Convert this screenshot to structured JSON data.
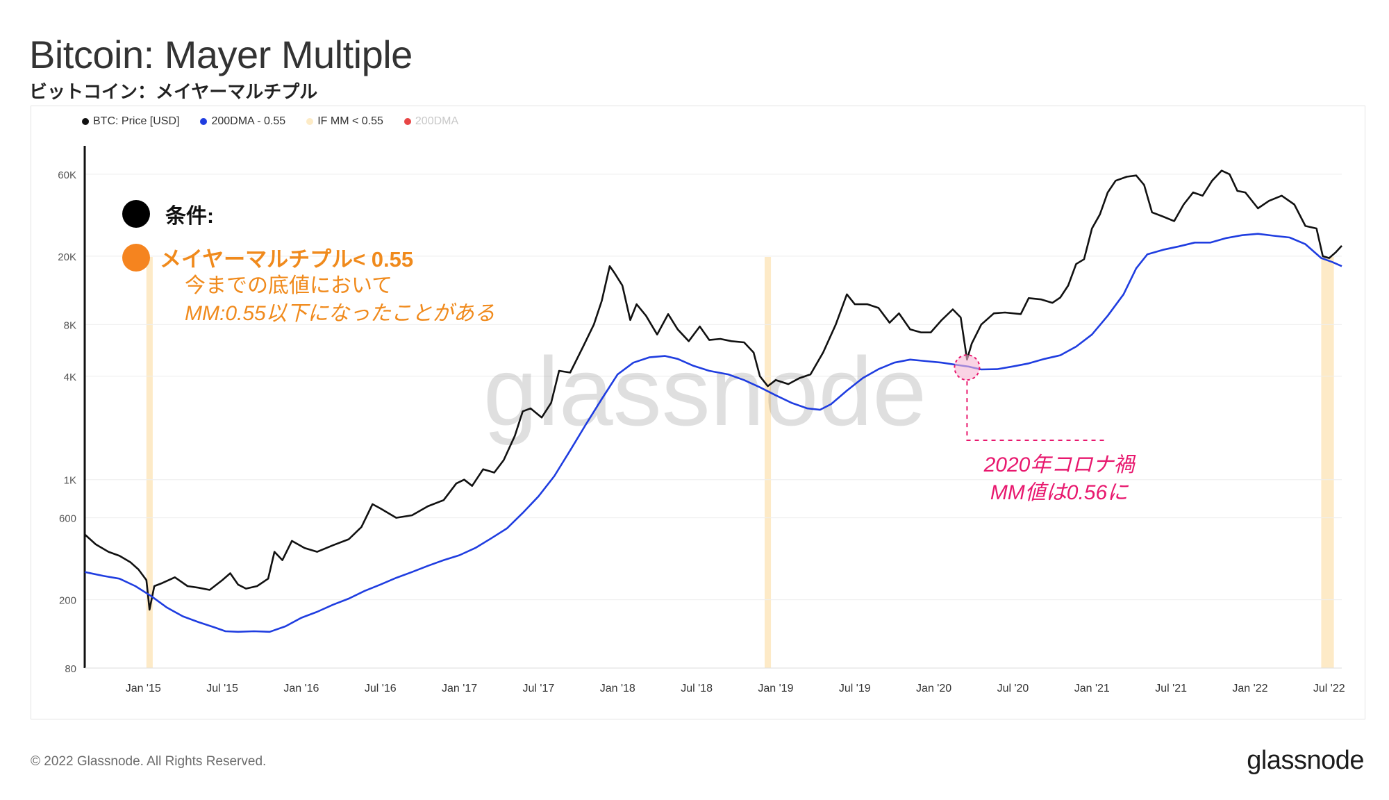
{
  "header": {
    "title": "Bitcoin: Mayer Multiple",
    "subtitle": "ビットコイン：メイヤーマルチプル"
  },
  "legend": [
    {
      "label": "BTC: Price [USD]",
      "color": "#111111"
    },
    {
      "label": "200DMA - 0.55",
      "color": "#1f3de0"
    },
    {
      "label": "IF MM < 0.55",
      "color": "#fdebc6"
    },
    {
      "label": "200DMA",
      "color": "#e84545"
    }
  ],
  "annotations": {
    "condition_label": "条件:",
    "mm_label": "メイヤーマルチプル< 0.55",
    "desc_line1": "今までの底値において",
    "desc_line2": "MM:0.55以下になったことがある",
    "covid_line1": "2020年コロナ禍",
    "covid_line2": "MM値は0.56に"
  },
  "watermark": "glassnode",
  "footer": {
    "copyright": "© 2022 Glassnode. All Rights Reserved.",
    "brand": "glassnode"
  },
  "chart_data": {
    "type": "line",
    "y_scale": "log",
    "ylim": [
      80,
      80000
    ],
    "ytick_labels": [
      "60K",
      "20K",
      "8K",
      "4K",
      "1K",
      "600",
      "200",
      "80"
    ],
    "yticks": [
      60000,
      20000,
      8000,
      4000,
      1000,
      600,
      200,
      80
    ],
    "xtick_labels": [
      "Jan '15",
      "Jul '15",
      "Jan '16",
      "Jul '16",
      "Jan '17",
      "Jul '17",
      "Jan '18",
      "Jul '18",
      "Jan '19",
      "Jul '19",
      "Jan '20",
      "Jul '20",
      "Jan '21",
      "Jul '21",
      "Jan '22",
      "Jul '22"
    ],
    "xticks": [
      2015.0,
      2015.5,
      2016.0,
      2016.5,
      2017.0,
      2017.5,
      2018.0,
      2018.5,
      2019.0,
      2019.5,
      2020.0,
      2020.5,
      2021.0,
      2021.5,
      2022.0,
      2022.5
    ],
    "xlim": [
      2014.63,
      2022.58
    ],
    "grid": true,
    "series": [
      {
        "name": "BTC: Price [USD]",
        "color": "#111111",
        "points": [
          [
            2014.63,
            480
          ],
          [
            2014.7,
            420
          ],
          [
            2014.78,
            380
          ],
          [
            2014.85,
            360
          ],
          [
            2014.92,
            330
          ],
          [
            2014.97,
            300
          ],
          [
            2015.02,
            260
          ],
          [
            2015.04,
            175
          ],
          [
            2015.07,
            240
          ],
          [
            2015.12,
            250
          ],
          [
            2015.2,
            270
          ],
          [
            2015.28,
            240
          ],
          [
            2015.35,
            235
          ],
          [
            2015.42,
            228
          ],
          [
            2015.5,
            260
          ],
          [
            2015.55,
            285
          ],
          [
            2015.6,
            245
          ],
          [
            2015.65,
            232
          ],
          [
            2015.72,
            240
          ],
          [
            2015.79,
            265
          ],
          [
            2015.83,
            380
          ],
          [
            2015.88,
            340
          ],
          [
            2015.94,
            440
          ],
          [
            2016.02,
            400
          ],
          [
            2016.1,
            380
          ],
          [
            2016.2,
            415
          ],
          [
            2016.3,
            450
          ],
          [
            2016.38,
            530
          ],
          [
            2016.45,
            720
          ],
          [
            2016.5,
            680
          ],
          [
            2016.6,
            600
          ],
          [
            2016.7,
            620
          ],
          [
            2016.8,
            700
          ],
          [
            2016.9,
            760
          ],
          [
            2016.98,
            950
          ],
          [
            2017.03,
            1000
          ],
          [
            2017.08,
            920
          ],
          [
            2017.15,
            1150
          ],
          [
            2017.22,
            1100
          ],
          [
            2017.28,
            1300
          ],
          [
            2017.35,
            1800
          ],
          [
            2017.4,
            2500
          ],
          [
            2017.45,
            2600
          ],
          [
            2017.52,
            2300
          ],
          [
            2017.58,
            2800
          ],
          [
            2017.63,
            4300
          ],
          [
            2017.7,
            4200
          ],
          [
            2017.78,
            5900
          ],
          [
            2017.85,
            8000
          ],
          [
            2017.9,
            11000
          ],
          [
            2017.95,
            17500
          ],
          [
            2017.98,
            16000
          ],
          [
            2018.03,
            13500
          ],
          [
            2018.08,
            8500
          ],
          [
            2018.12,
            10500
          ],
          [
            2018.18,
            9000
          ],
          [
            2018.25,
            7000
          ],
          [
            2018.32,
            9200
          ],
          [
            2018.38,
            7500
          ],
          [
            2018.45,
            6400
          ],
          [
            2018.52,
            7800
          ],
          [
            2018.58,
            6500
          ],
          [
            2018.65,
            6600
          ],
          [
            2018.72,
            6400
          ],
          [
            2018.8,
            6300
          ],
          [
            2018.86,
            5500
          ],
          [
            2018.9,
            4000
          ],
          [
            2018.95,
            3500
          ],
          [
            2019.0,
            3800
          ],
          [
            2019.08,
            3600
          ],
          [
            2019.15,
            3900
          ],
          [
            2019.22,
            4100
          ],
          [
            2019.3,
            5500
          ],
          [
            2019.38,
            8000
          ],
          [
            2019.45,
            12000
          ],
          [
            2019.5,
            10500
          ],
          [
            2019.58,
            10500
          ],
          [
            2019.65,
            10000
          ],
          [
            2019.72,
            8200
          ],
          [
            2019.78,
            9300
          ],
          [
            2019.85,
            7500
          ],
          [
            2019.92,
            7200
          ],
          [
            2019.98,
            7200
          ],
          [
            2020.05,
            8500
          ],
          [
            2020.12,
            9800
          ],
          [
            2020.17,
            8800
          ],
          [
            2020.21,
            5000
          ],
          [
            2020.24,
            6200
          ],
          [
            2020.3,
            8000
          ],
          [
            2020.38,
            9300
          ],
          [
            2020.45,
            9400
          ],
          [
            2020.55,
            9200
          ],
          [
            2020.6,
            11400
          ],
          [
            2020.68,
            11200
          ],
          [
            2020.75,
            10700
          ],
          [
            2020.8,
            11500
          ],
          [
            2020.85,
            13500
          ],
          [
            2020.9,
            18000
          ],
          [
            2020.95,
            19200
          ],
          [
            2021.0,
            29000
          ],
          [
            2021.05,
            35000
          ],
          [
            2021.1,
            47000
          ],
          [
            2021.15,
            55000
          ],
          [
            2021.22,
            58000
          ],
          [
            2021.28,
            59000
          ],
          [
            2021.33,
            52000
          ],
          [
            2021.38,
            36000
          ],
          [
            2021.45,
            34000
          ],
          [
            2021.52,
            32000
          ],
          [
            2021.58,
            40000
          ],
          [
            2021.64,
            47000
          ],
          [
            2021.7,
            45000
          ],
          [
            2021.76,
            55000
          ],
          [
            2021.82,
            63000
          ],
          [
            2021.87,
            60000
          ],
          [
            2021.92,
            48000
          ],
          [
            2021.97,
            47000
          ],
          [
            2022.05,
            38000
          ],
          [
            2022.12,
            42000
          ],
          [
            2022.2,
            45000
          ],
          [
            2022.28,
            40000
          ],
          [
            2022.35,
            30000
          ],
          [
            2022.42,
            29000
          ],
          [
            2022.46,
            20000
          ],
          [
            2022.5,
            19500
          ],
          [
            2022.54,
            21000
          ],
          [
            2022.58,
            23000
          ]
        ]
      },
      {
        "name": "200DMA - 0.55",
        "color": "#1f3de0",
        "points": [
          [
            2014.63,
            290
          ],
          [
            2014.75,
            275
          ],
          [
            2014.85,
            265
          ],
          [
            2014.95,
            240
          ],
          [
            2015.05,
            210
          ],
          [
            2015.15,
            180
          ],
          [
            2015.25,
            160
          ],
          [
            2015.35,
            148
          ],
          [
            2015.45,
            138
          ],
          [
            2015.52,
            131
          ],
          [
            2015.6,
            130
          ],
          [
            2015.7,
            131
          ],
          [
            2015.8,
            130
          ],
          [
            2015.9,
            140
          ],
          [
            2016.0,
            157
          ],
          [
            2016.1,
            170
          ],
          [
            2016.2,
            187
          ],
          [
            2016.3,
            203
          ],
          [
            2016.4,
            225
          ],
          [
            2016.5,
            245
          ],
          [
            2016.6,
            268
          ],
          [
            2016.7,
            290
          ],
          [
            2016.8,
            315
          ],
          [
            2016.9,
            340
          ],
          [
            2017.0,
            363
          ],
          [
            2017.1,
            400
          ],
          [
            2017.2,
            455
          ],
          [
            2017.3,
            520
          ],
          [
            2017.4,
            640
          ],
          [
            2017.5,
            800
          ],
          [
            2017.6,
            1050
          ],
          [
            2017.7,
            1480
          ],
          [
            2017.8,
            2100
          ],
          [
            2017.9,
            2950
          ],
          [
            2018.0,
            4100
          ],
          [
            2018.1,
            4800
          ],
          [
            2018.2,
            5150
          ],
          [
            2018.3,
            5250
          ],
          [
            2018.38,
            5050
          ],
          [
            2018.48,
            4600
          ],
          [
            2018.58,
            4300
          ],
          [
            2018.7,
            4100
          ],
          [
            2018.8,
            3800
          ],
          [
            2018.9,
            3450
          ],
          [
            2019.0,
            3100
          ],
          [
            2019.1,
            2800
          ],
          [
            2019.2,
            2600
          ],
          [
            2019.28,
            2550
          ],
          [
            2019.35,
            2750
          ],
          [
            2019.45,
            3300
          ],
          [
            2019.55,
            3900
          ],
          [
            2019.65,
            4400
          ],
          [
            2019.75,
            4800
          ],
          [
            2019.85,
            5000
          ],
          [
            2019.95,
            4900
          ],
          [
            2020.05,
            4800
          ],
          [
            2020.15,
            4650
          ],
          [
            2020.22,
            4550
          ],
          [
            2020.3,
            4380
          ],
          [
            2020.4,
            4400
          ],
          [
            2020.5,
            4560
          ],
          [
            2020.6,
            4750
          ],
          [
            2020.7,
            5050
          ],
          [
            2020.8,
            5300
          ],
          [
            2020.9,
            5950
          ],
          [
            2021.0,
            7000
          ],
          [
            2021.1,
            9000
          ],
          [
            2021.2,
            12000
          ],
          [
            2021.28,
            17000
          ],
          [
            2021.35,
            20500
          ],
          [
            2021.45,
            21800
          ],
          [
            2021.55,
            22800
          ],
          [
            2021.65,
            24000
          ],
          [
            2021.75,
            24000
          ],
          [
            2021.85,
            25500
          ],
          [
            2021.95,
            26500
          ],
          [
            2022.05,
            27000
          ],
          [
            2022.15,
            26300
          ],
          [
            2022.25,
            25700
          ],
          [
            2022.35,
            23500
          ],
          [
            2022.45,
            19500
          ],
          [
            2022.52,
            18500
          ],
          [
            2022.58,
            17500
          ]
        ]
      }
    ],
    "highlight_periods": [
      [
        2015.02,
        2015.06
      ],
      [
        2018.93,
        2018.97
      ],
      [
        2022.45,
        2022.53
      ]
    ],
    "covid_marker": [
      2020.21,
      4500
    ]
  }
}
